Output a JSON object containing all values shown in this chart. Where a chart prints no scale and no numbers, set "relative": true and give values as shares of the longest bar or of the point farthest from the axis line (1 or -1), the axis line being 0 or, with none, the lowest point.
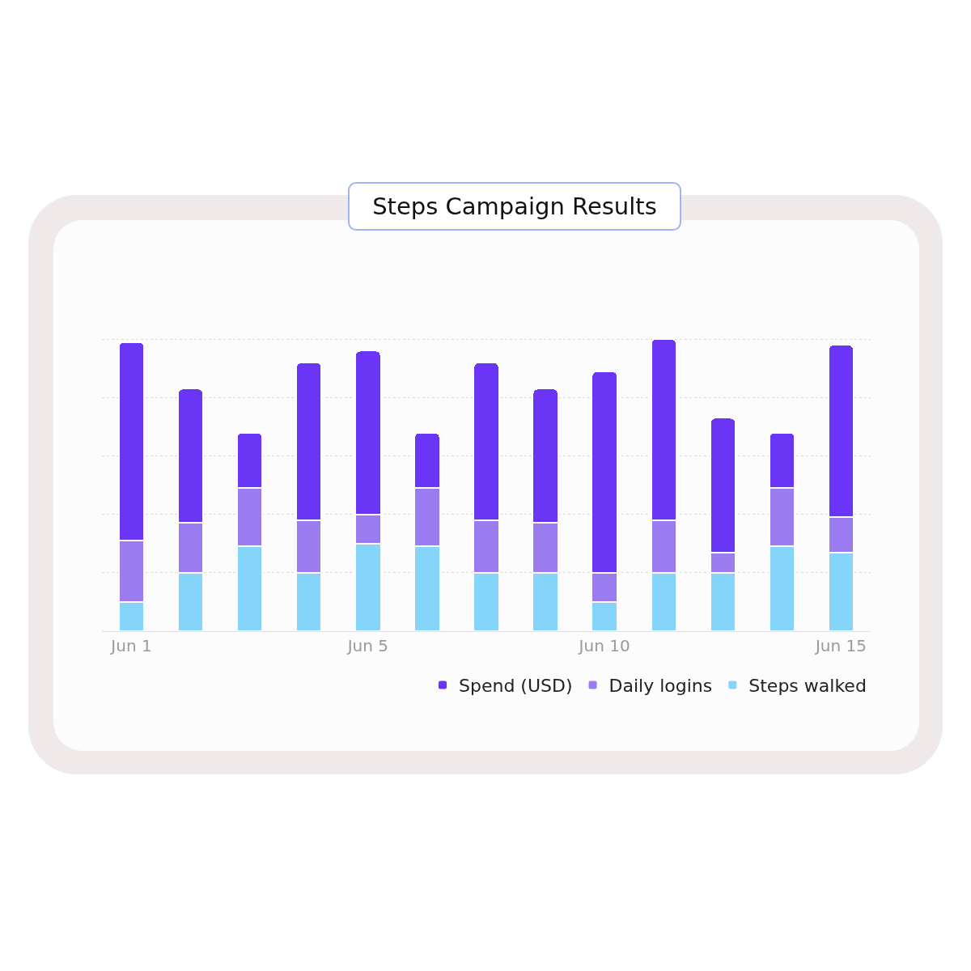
{
  "chart_data": {
    "type": "bar",
    "title": "Steps Campaign Results",
    "stacked": true,
    "relative": true,
    "grid": true,
    "legend": "bottom right",
    "categories": [
      "Jun 1",
      null,
      null,
      null,
      "Jun 5",
      null,
      null,
      null,
      "Jun 10",
      null,
      null,
      null,
      "Jun 15"
    ],
    "series": [
      {
        "name": "Steps walked",
        "color": "#84d5f9",
        "values": [
          0.1,
          0.2,
          0.29,
          0.2,
          0.3,
          0.29,
          0.2,
          0.2,
          0.1,
          0.2,
          0.2,
          0.29,
          0.27
        ]
      },
      {
        "name": "Daily logins",
        "color": "#9b7bf0",
        "values": [
          0.21,
          0.17,
          0.2,
          0.18,
          0.1,
          0.2,
          0.18,
          0.17,
          0.1,
          0.18,
          0.07,
          0.2,
          0.12
        ]
      },
      {
        "name": "Spend (USD)",
        "color": "#6a35f5",
        "values": [
          0.68,
          0.46,
          0.19,
          0.54,
          0.56,
          0.19,
          0.54,
          0.46,
          0.69,
          0.62,
          0.46,
          0.19,
          0.59
        ]
      }
    ]
  }
}
